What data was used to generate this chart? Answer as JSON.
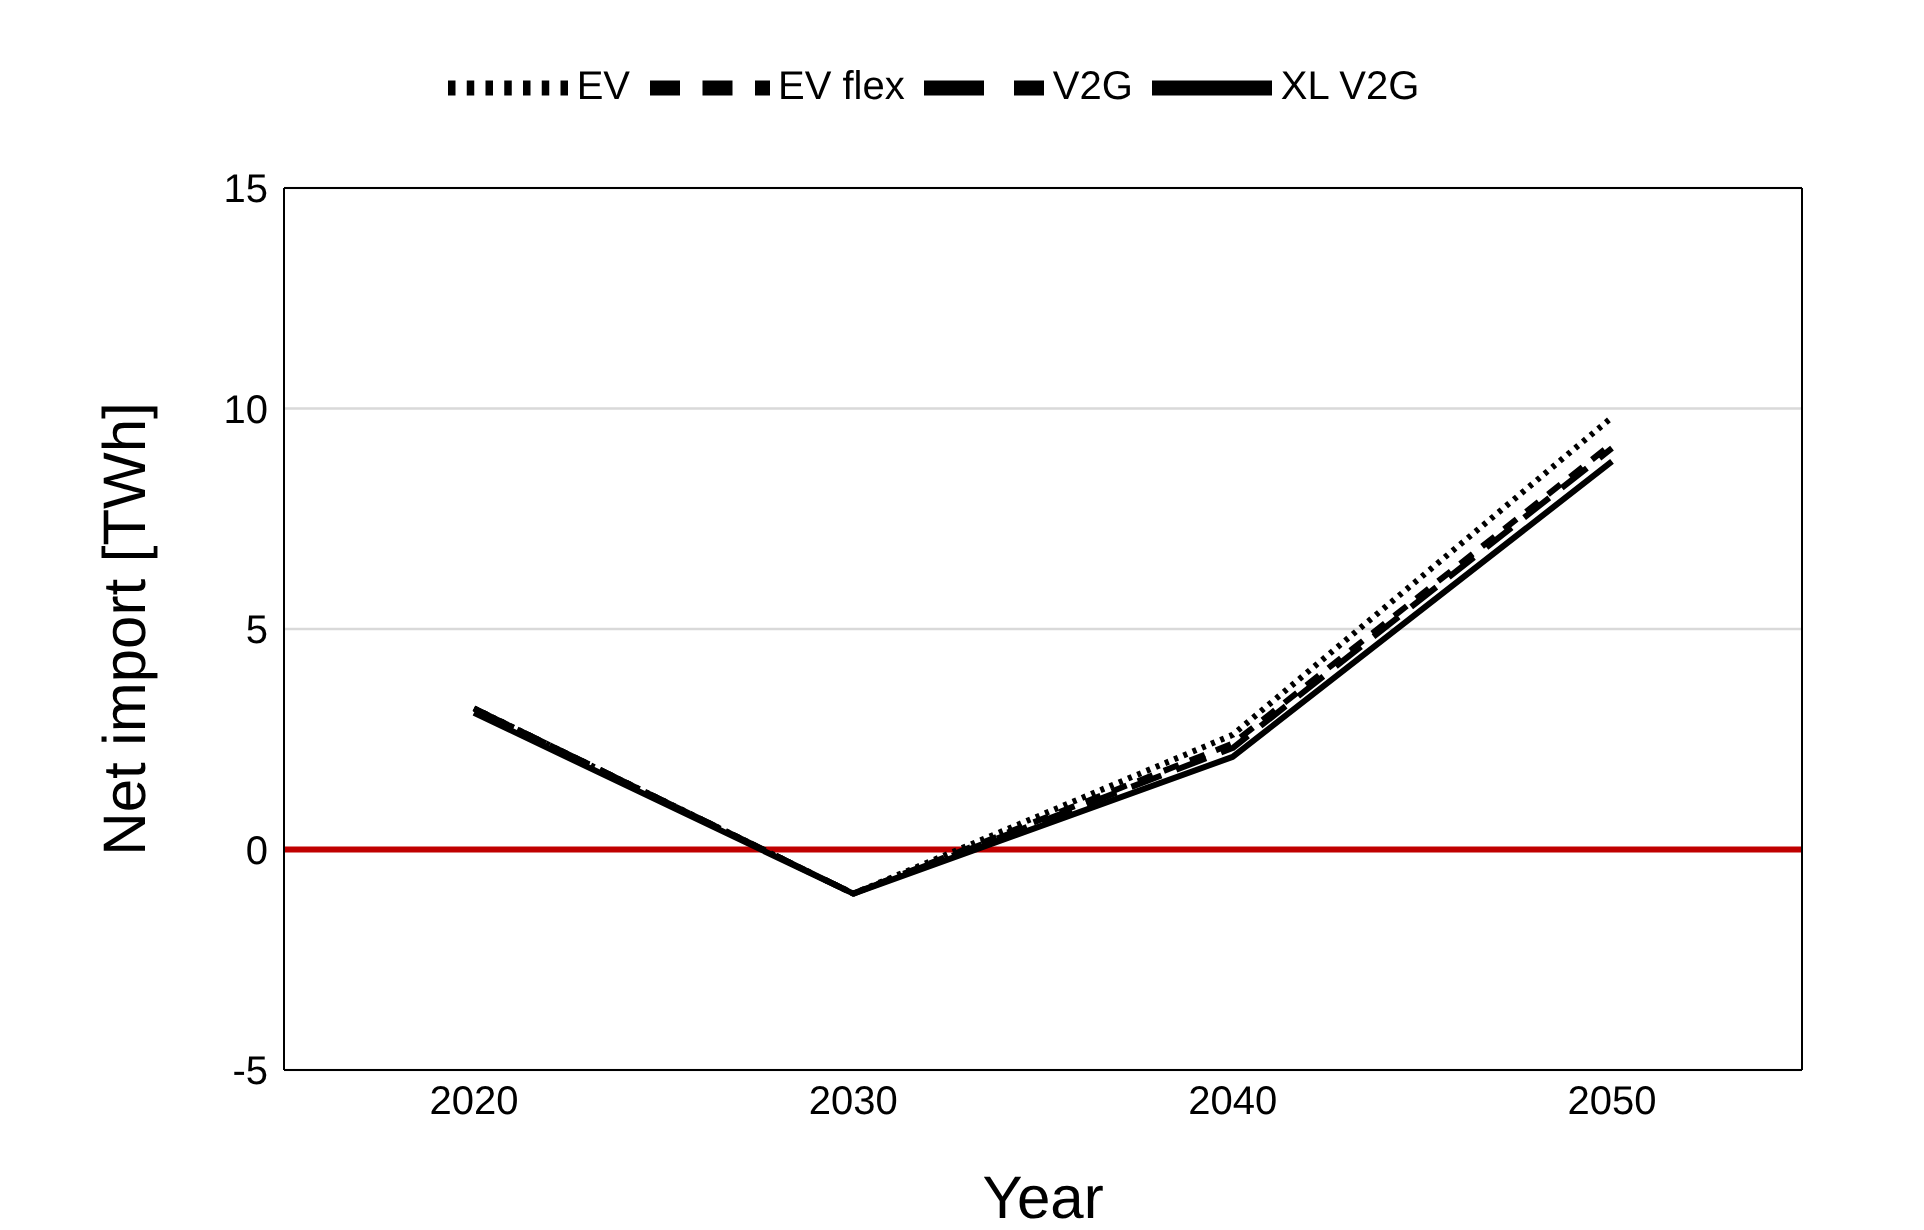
{
  "chart_data": {
    "type": "line",
    "xlabel": "Year",
    "ylabel": "Net import [TWh]",
    "categories": [
      "2020",
      "2030",
      "2040",
      "2050"
    ],
    "series": [
      {
        "name": "EV",
        "color": "#000000",
        "line_style": "dotted",
        "values": [
          3.2,
          -1.0,
          2.6,
          9.8
        ]
      },
      {
        "name": "EV flex",
        "color": "#000000",
        "line_style": "dashed",
        "values": [
          3.2,
          -1.0,
          2.4,
          9.2
        ]
      },
      {
        "name": "V2G",
        "color": "#000000",
        "line_style": "dashed",
        "values": [
          3.2,
          -1.0,
          2.3,
          9.1
        ]
      },
      {
        "name": "XL V2G",
        "color": "#000000",
        "line_style": "solid",
        "values": [
          3.1,
          -1.0,
          2.1,
          8.8
        ]
      }
    ],
    "ylim": [
      -5,
      15
    ],
    "yticks": [
      -5,
      0,
      5,
      10,
      15
    ],
    "grid": "y",
    "legend": "top",
    "marker": "none",
    "ref_lines": [
      {
        "axis": "y",
        "value": 0,
        "color": "#c00000"
      }
    ]
  }
}
